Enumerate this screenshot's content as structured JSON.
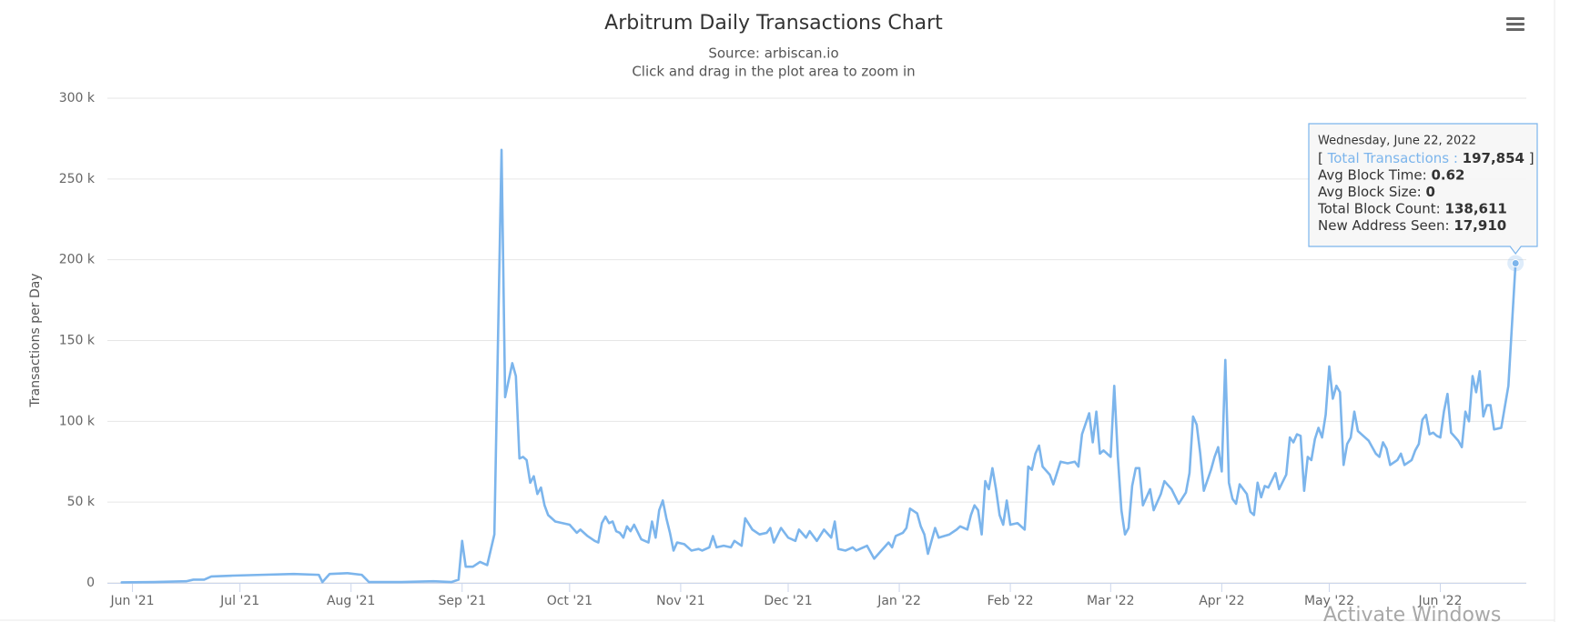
{
  "chart_data": {
    "type": "line",
    "title": "Arbitrum Daily Transactions Chart",
    "subtitle": "Source: arbiscan.io",
    "caption": "Click and drag in the plot area to zoom in",
    "y_label": "Transactions per Day",
    "grid": true,
    "xlim": [
      "2021-05-25",
      "2022-06-25"
    ],
    "ylim": [
      0,
      300000
    ],
    "yticks": [
      0,
      {
        "value": 50000,
        "label": "50 k"
      },
      {
        "value": 100000,
        "label": "100 k"
      },
      {
        "value": 150000,
        "label": "150 k"
      },
      {
        "value": 200000,
        "label": "200 k"
      },
      {
        "value": 250000,
        "label": "250 k"
      },
      {
        "value": 300000,
        "label": "300 k"
      }
    ],
    "xticks": [
      {
        "value": "2021-06-01",
        "label": "Jun '21"
      },
      {
        "value": "2021-07-01",
        "label": "Jul '21"
      },
      {
        "value": "2021-08-01",
        "label": "Aug '21"
      },
      {
        "value": "2021-09-01",
        "label": "Sep '21"
      },
      {
        "value": "2021-10-01",
        "label": "Oct '21"
      },
      {
        "value": "2021-11-01",
        "label": "Nov '21"
      },
      {
        "value": "2021-12-01",
        "label": "Dec '21"
      },
      {
        "value": "2022-01-01",
        "label": "Jan '22"
      },
      {
        "value": "2022-02-01",
        "label": "Feb '22"
      },
      {
        "value": "2022-03-01",
        "label": "Mar '22"
      },
      {
        "value": "2022-04-01",
        "label": "Apr '22"
      },
      {
        "value": "2022-05-01",
        "label": "May '22"
      },
      {
        "value": "2022-06-01",
        "label": "Jun '22"
      }
    ],
    "series": [
      {
        "name": "Total Transactions",
        "color": "#7cb5ec",
        "x": [
          "2021-05-29",
          "2021-06-07",
          "2021-06-16",
          "2021-06-18",
          "2021-06-21",
          "2021-06-23",
          "2021-06-29",
          "2021-07-07",
          "2021-07-16",
          "2021-07-23",
          "2021-07-24",
          "2021-07-26",
          "2021-07-31",
          "2021-08-04",
          "2021-08-06",
          "2021-08-15",
          "2021-08-24",
          "2021-08-29",
          "2021-08-31",
          "2021-09-01",
          "2021-09-02",
          "2021-09-04",
          "2021-09-06",
          "2021-09-08",
          "2021-09-10",
          "2021-09-12",
          "2021-09-13",
          "2021-09-15",
          "2021-09-16",
          "2021-09-17",
          "2021-09-18",
          "2021-09-19",
          "2021-09-20",
          "2021-09-21",
          "2021-09-22",
          "2021-09-23",
          "2021-09-24",
          "2021-09-25",
          "2021-09-27",
          "2021-09-29",
          "2021-10-01",
          "2021-10-03",
          "2021-10-04",
          "2021-10-06",
          "2021-10-08",
          "2021-10-09",
          "2021-10-10",
          "2021-10-11",
          "2021-10-12",
          "2021-10-13",
          "2021-10-14",
          "2021-10-15",
          "2021-10-16",
          "2021-10-17",
          "2021-10-18",
          "2021-10-19",
          "2021-10-21",
          "2021-10-23",
          "2021-10-24",
          "2021-10-25",
          "2021-10-26",
          "2021-10-27",
          "2021-10-28",
          "2021-10-29",
          "2021-10-30",
          "2021-10-31",
          "2021-11-02",
          "2021-11-04",
          "2021-11-06",
          "2021-11-07",
          "2021-11-09",
          "2021-11-10",
          "2021-11-11",
          "2021-11-13",
          "2021-11-15",
          "2021-11-16",
          "2021-11-18",
          "2021-11-19",
          "2021-11-21",
          "2021-11-23",
          "2021-11-25",
          "2021-11-26",
          "2021-11-27",
          "2021-11-29",
          "2021-12-01",
          "2021-12-03",
          "2021-12-04",
          "2021-12-06",
          "2021-12-07",
          "2021-12-09",
          "2021-12-11",
          "2021-12-13",
          "2021-12-14",
          "2021-12-15",
          "2021-12-17",
          "2021-12-19",
          "2021-12-20",
          "2021-12-23",
          "2021-12-24",
          "2021-12-25",
          "2021-12-27",
          "2021-12-29",
          "2021-12-30",
          "2021-12-31",
          "2022-01-02",
          "2022-01-03",
          "2022-01-04",
          "2022-01-06",
          "2022-01-07",
          "2022-01-08",
          "2022-01-09",
          "2022-01-11",
          "2022-01-12",
          "2022-01-15",
          "2022-01-17",
          "2022-01-18",
          "2022-01-20",
          "2022-01-21",
          "2022-01-22",
          "2022-01-23",
          "2022-01-24",
          "2022-01-25",
          "2022-01-26",
          "2022-01-27",
          "2022-01-28",
          "2022-01-29",
          "2022-01-30",
          "2022-01-31",
          "2022-02-01",
          "2022-02-03",
          "2022-02-05",
          "2022-02-06",
          "2022-02-07",
          "2022-02-08",
          "2022-02-09",
          "2022-02-10",
          "2022-02-12",
          "2022-02-13",
          "2022-02-15",
          "2022-02-17",
          "2022-02-19",
          "2022-02-20",
          "2022-02-21",
          "2022-02-23",
          "2022-02-24",
          "2022-02-25",
          "2022-02-26",
          "2022-02-27",
          "2022-02-28",
          "2022-03-01",
          "2022-03-02",
          "2022-03-03",
          "2022-03-04",
          "2022-03-05",
          "2022-03-06",
          "2022-03-07",
          "2022-03-08",
          "2022-03-09",
          "2022-03-10",
          "2022-03-12",
          "2022-03-13",
          "2022-03-15",
          "2022-03-16",
          "2022-03-18",
          "2022-03-20",
          "2022-03-22",
          "2022-03-23",
          "2022-03-24",
          "2022-03-25",
          "2022-03-26",
          "2022-03-27",
          "2022-03-29",
          "2022-03-30",
          "2022-03-31",
          "2022-04-01",
          "2022-04-02",
          "2022-04-03",
          "2022-04-04",
          "2022-04-05",
          "2022-04-06",
          "2022-04-08",
          "2022-04-09",
          "2022-04-10",
          "2022-04-11",
          "2022-04-12",
          "2022-04-13",
          "2022-04-14",
          "2022-04-16",
          "2022-04-17",
          "2022-04-19",
          "2022-04-20",
          "2022-04-21",
          "2022-04-22",
          "2022-04-23",
          "2022-04-24",
          "2022-04-25",
          "2022-04-26",
          "2022-04-27",
          "2022-04-28",
          "2022-04-29",
          "2022-04-30",
          "2022-05-01",
          "2022-05-02",
          "2022-05-03",
          "2022-05-04",
          "2022-05-05",
          "2022-05-06",
          "2022-05-07",
          "2022-05-08",
          "2022-05-09",
          "2022-05-10",
          "2022-05-12",
          "2022-05-14",
          "2022-05-15",
          "2022-05-16",
          "2022-05-17",
          "2022-05-18",
          "2022-05-20",
          "2022-05-21",
          "2022-05-22",
          "2022-05-24",
          "2022-05-25",
          "2022-05-26",
          "2022-05-27",
          "2022-05-28",
          "2022-05-29",
          "2022-05-30",
          "2022-05-31",
          "2022-06-01",
          "2022-06-02",
          "2022-06-03",
          "2022-06-04",
          "2022-06-06",
          "2022-06-07",
          "2022-06-08",
          "2022-06-09",
          "2022-06-10",
          "2022-06-11",
          "2022-06-12",
          "2022-06-13",
          "2022-06-14",
          "2022-06-15",
          "2022-06-16",
          "2022-06-18",
          "2022-06-20",
          "2022-06-22"
        ],
        "values": [
          300,
          500,
          1000,
          2000,
          2000,
          4000,
          4500,
          5000,
          5500,
          5000,
          500,
          5500,
          6000,
          5000,
          500,
          500,
          1000,
          500,
          2000,
          26000,
          10000,
          10000,
          13000,
          11000,
          30000,
          268000,
          115000,
          136000,
          128000,
          77000,
          78000,
          76000,
          62000,
          66000,
          55000,
          59000,
          48000,
          42000,
          38000,
          37000,
          36000,
          31000,
          33000,
          29000,
          26000,
          25000,
          37000,
          41000,
          37000,
          38000,
          32000,
          31000,
          28000,
          35000,
          32000,
          36000,
          27000,
          25000,
          38000,
          28000,
          45000,
          51000,
          40000,
          31000,
          20000,
          25000,
          24000,
          20000,
          21000,
          20000,
          22000,
          29000,
          22000,
          23000,
          22000,
          26000,
          23000,
          40000,
          33000,
          30000,
          31000,
          34000,
          25000,
          34000,
          28000,
          26000,
          33000,
          28000,
          32000,
          26000,
          33000,
          28000,
          38000,
          21000,
          20000,
          22000,
          20000,
          23000,
          19000,
          15000,
          20000,
          25000,
          22000,
          29000,
          31000,
          34000,
          46000,
          43000,
          35000,
          30000,
          18000,
          34000,
          28000,
          30000,
          33000,
          35000,
          33000,
          42000,
          48000,
          45000,
          30000,
          63000,
          58000,
          71000,
          58000,
          42000,
          36000,
          51000,
          36000,
          37000,
          33000,
          72000,
          70000,
          80000,
          85000,
          72000,
          67000,
          61000,
          75000,
          74000,
          75000,
          72000,
          92000,
          105000,
          87000,
          106000,
          80000,
          82000,
          80000,
          78000,
          122000,
          78000,
          45000,
          30000,
          34000,
          60000,
          71000,
          71000,
          48000,
          58000,
          45000,
          55000,
          63000,
          58000,
          49000,
          56000,
          68000,
          103000,
          98000,
          80000,
          57000,
          70000,
          78000,
          84000,
          69000,
          138000,
          62000,
          52000,
          49000,
          61000,
          55000,
          44000,
          42000,
          62000,
          53000,
          60000,
          59000,
          68000,
          58000,
          67000,
          90000,
          87000,
          92000,
          91000,
          57000,
          78000,
          76000,
          89000,
          96000,
          90000,
          104000,
          134000,
          114000,
          122000,
          118000,
          73000,
          86000,
          90000,
          106000,
          94000,
          92000,
          88000,
          80000,
          78000,
          87000,
          83000,
          73000,
          76000,
          80000,
          73000,
          76000,
          82000,
          86000,
          101000,
          104000,
          92000,
          93000,
          91000,
          90000,
          106000,
          117000,
          93000,
          88000,
          84000,
          106000,
          100000,
          128000,
          118000,
          131000,
          103000,
          110000,
          110000,
          95000,
          96000,
          122000,
          197854
        ]
      }
    ],
    "tooltip": {
      "date": "Wednesday, June 22, 2022",
      "rows": [
        {
          "prefix": "[",
          "label": "Total Transactions :",
          "value": "197,854",
          "suffix": "]"
        },
        {
          "label": "Avg Block Time:",
          "value": "0.62"
        },
        {
          "label": "Avg Block Size:",
          "value": "0"
        },
        {
          "label": "Total Block Count:",
          "value": "138,611"
        },
        {
          "label": "New Address Seen:",
          "value": "17,910"
        }
      ]
    },
    "watermark": "Activate Windows"
  }
}
